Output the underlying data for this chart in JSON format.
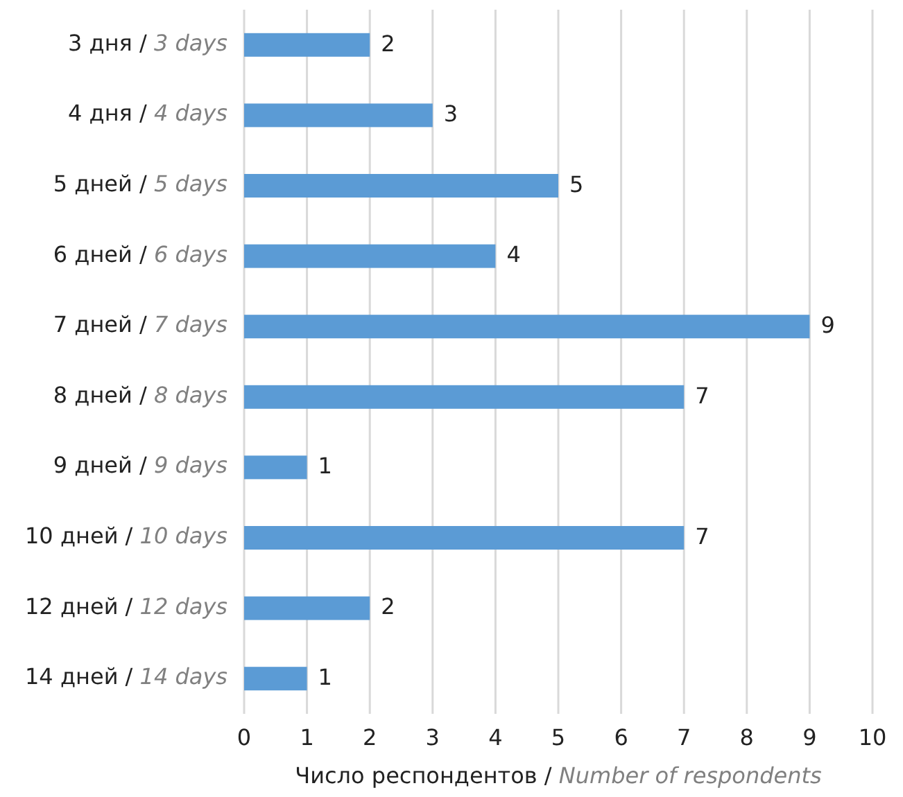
{
  "chart_data": {
    "type": "bar",
    "orientation": "horizontal",
    "categories": [
      "3 дня / 3 days",
      "4 дня / 4 days",
      "5 дней / 5 days",
      "6 дней / 6 days",
      "7 дней / 7 days",
      "8 дней / 8 days",
      "9 дней / 9 days",
      "10 дней / 10 days",
      "12 дней / 12 days",
      "14 дней / 14 days"
    ],
    "values": [
      2,
      3,
      5,
      4,
      9,
      7,
      1,
      7,
      2,
      1
    ],
    "color": "#5b9bd5",
    "xlim": [
      0,
      10
    ],
    "xticks": [
      0,
      1,
      2,
      3,
      4,
      5,
      6,
      7,
      8,
      9,
      10
    ],
    "grid": "x",
    "data_labels": true,
    "xlabel": "Число респондентов / Number of respondents"
  }
}
